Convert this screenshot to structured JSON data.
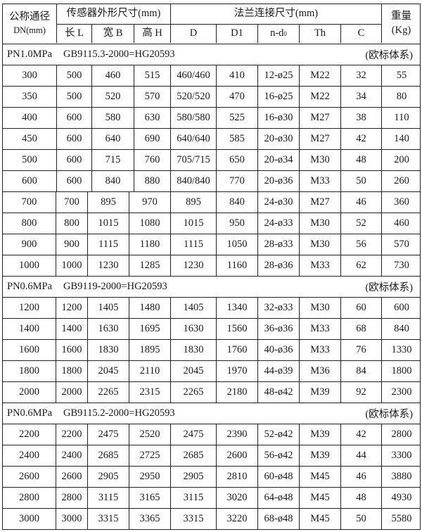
{
  "header": {
    "dn_label": "公称通径",
    "dn_unit": "DN(mm)",
    "sensor_group": "传感器外形尺寸(mm)",
    "flange_group": "法兰连接尺寸(mm)",
    "weight_label": "重量",
    "weight_unit": "(Kg)",
    "columns": [
      "长 L",
      "宽 B",
      "高 H",
      "D",
      "D1",
      "n-d",
      "Th",
      "C"
    ],
    "nd_subscript": "0"
  },
  "sections": [
    {
      "pressure": "PN1.0MPa",
      "standard": "GB9115.3-2000=HG20593",
      "system": "(欧标体系)",
      "rows": [
        [
          "300",
          "500",
          "460",
          "515",
          "460/460",
          "410",
          "12-ø25",
          "M22",
          "32",
          "55"
        ],
        [
          "350",
          "500",
          "520",
          "570",
          "520/520",
          "470",
          "16-ø25",
          "M22",
          "34",
          "80"
        ],
        [
          "400",
          "600",
          "580",
          "630",
          "580/580",
          "525",
          "16-ø30",
          "M27",
          "38",
          "110"
        ],
        [
          "450",
          "600",
          "640",
          "690",
          "640/640",
          "585",
          "20-ø30",
          "M27",
          "42",
          "140"
        ],
        [
          "500",
          "600",
          "715",
          "760",
          "705/715",
          "650",
          "20-ø34",
          "M30",
          "48",
          "200"
        ],
        [
          "600",
          "600",
          "840",
          "880",
          "840/840",
          "770",
          "20-ø36",
          "M33",
          "50",
          "260"
        ],
        [
          "700",
          "700",
          "895",
          "970",
          "895",
          "840",
          "24-ø30",
          "M27",
          "46",
          "360"
        ],
        [
          "800",
          "800",
          "1015",
          "1080",
          "1015",
          "950",
          "24-ø33",
          "M30",
          "52",
          "460"
        ],
        [
          "900",
          "900",
          "1115",
          "1180",
          "1115",
          "1050",
          "28-ø33",
          "M30",
          "56",
          "570"
        ],
        [
          "1000",
          "1000",
          "1230",
          "1285",
          "1230",
          "1160",
          "28-ø36",
          "M33",
          "62",
          "730"
        ]
      ]
    },
    {
      "pressure": "PN0.6MPa",
      "standard": "GB9119-2000=HG20593",
      "system": "(欧标体系)",
      "rows": [
        [
          "1200",
          "1200",
          "1405",
          "1480",
          "1405",
          "1340",
          "32-ø33",
          "M30",
          "60",
          "600"
        ],
        [
          "1400",
          "1400",
          "1630",
          "1695",
          "1630",
          "1560",
          "36-ø36",
          "M33",
          "68",
          "840"
        ],
        [
          "1600",
          "1600",
          "1830",
          "1895",
          "1830",
          "1760",
          "40-ø36",
          "M33",
          "76",
          "1330"
        ],
        [
          "1800",
          "1800",
          "2045",
          "2110",
          "2045",
          "1970",
          "44-ø39",
          "M36",
          "84",
          "1800"
        ],
        [
          "2000",
          "2000",
          "2265",
          "2315",
          "2265",
          "2180",
          "48-ø42",
          "M39",
          "92",
          "2300"
        ]
      ]
    },
    {
      "pressure": "PN0.6MPa",
      "standard": "GB9115.2-2000=HG20593",
      "system": "(欧标体系)",
      "rows": [
        [
          "2200",
          "2200",
          "2475",
          "2520",
          "2475",
          "2390",
          "52-ø42",
          "M39",
          "42",
          "2800"
        ],
        [
          "2400",
          "2400",
          "2685",
          "2725",
          "2685",
          "2600",
          "56-ø42",
          "M39",
          "44",
          "3300"
        ],
        [
          "2600",
          "2600",
          "2905",
          "2950",
          "2905",
          "2810",
          "60-ø48",
          "M45",
          "46",
          "3880"
        ],
        [
          "2800",
          "2800",
          "3115",
          "3165",
          "3115",
          "3020",
          "64-ø48",
          "M45",
          "48",
          "4930"
        ],
        [
          "3000",
          "3000",
          "3315",
          "3365",
          "3315",
          "3220",
          "68-ø48",
          "M45",
          "50",
          "5580"
        ]
      ]
    }
  ]
}
